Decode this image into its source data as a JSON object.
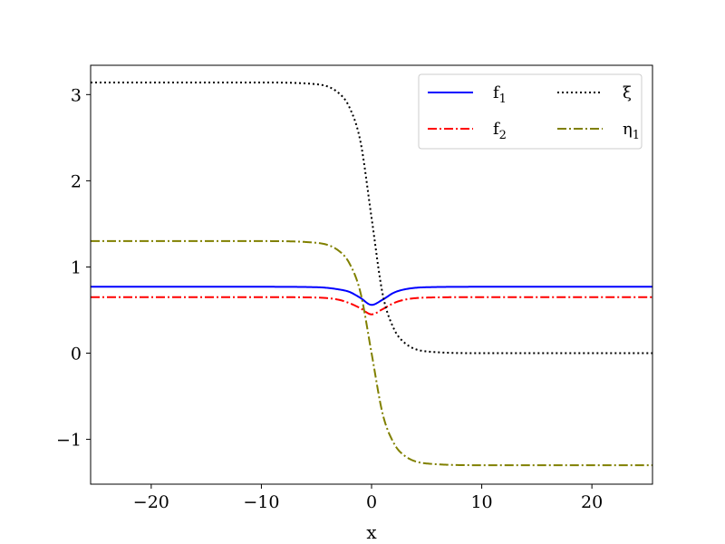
{
  "chart_data": {
    "type": "line",
    "title": "",
    "xlabel": "x",
    "ylabel": "",
    "xlim": [
      -25.5,
      25.5
    ],
    "ylim": [
      -1.52,
      3.34
    ],
    "xticks": [
      -20,
      -10,
      0,
      10,
      20
    ],
    "xtick_labels": [
      "−20",
      "−10",
      "0",
      "10",
      "20"
    ],
    "yticks": [
      -1,
      0,
      1,
      2,
      3
    ],
    "ytick_labels": [
      "−1",
      "0",
      "1",
      "2",
      "3"
    ],
    "grid": false,
    "legend_position": "top-right",
    "legend_columns": 2,
    "series": [
      {
        "name": "f1",
        "label_base": "f",
        "label_sub": "1",
        "color": "#0000ff",
        "style": "solid",
        "x": [
          -25.5,
          -10,
          -5,
          -3,
          -2,
          -1,
          0,
          1,
          2,
          3,
          5,
          10,
          25.5
        ],
        "y": [
          0.77,
          0.77,
          0.765,
          0.74,
          0.71,
          0.64,
          0.56,
          0.62,
          0.7,
          0.74,
          0.765,
          0.77,
          0.77
        ]
      },
      {
        "name": "f2",
        "label_base": "f",
        "label_sub": "2",
        "color": "#ff0000",
        "style": "dashdot",
        "x": [
          -25.5,
          -10,
          -5,
          -3,
          -2,
          -1,
          0,
          1,
          2,
          3,
          5,
          10,
          25.5
        ],
        "y": [
          0.65,
          0.65,
          0.645,
          0.62,
          0.58,
          0.52,
          0.45,
          0.51,
          0.58,
          0.62,
          0.645,
          0.65,
          0.65
        ]
      },
      {
        "name": "ξ",
        "label_base": "ξ",
        "label_sub": "",
        "color": "#000000",
        "style": "dotted",
        "x": [
          -25.5,
          -10,
          -5,
          -3,
          -2,
          -1,
          0,
          1,
          2,
          3,
          5,
          10,
          25.5
        ],
        "y": [
          3.14,
          3.14,
          3.12,
          3.02,
          2.85,
          2.45,
          1.57,
          0.69,
          0.29,
          0.12,
          0.02,
          0.0,
          0.0
        ]
      },
      {
        "name": "η1",
        "label_base": "η",
        "label_sub": "1",
        "color": "#808000",
        "style": "dashdot",
        "x": [
          -25.5,
          -10,
          -5,
          -3,
          -2,
          -1,
          0,
          1,
          2,
          3,
          5,
          10,
          25.5
        ],
        "y": [
          1.3,
          1.3,
          1.28,
          1.19,
          1.04,
          0.7,
          0.0,
          -0.7,
          -1.04,
          -1.19,
          -1.28,
          -1.3,
          -1.3
        ]
      }
    ]
  }
}
